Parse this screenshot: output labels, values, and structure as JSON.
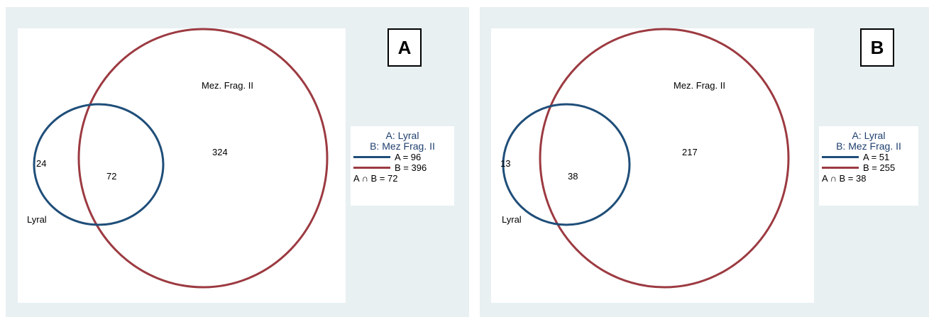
{
  "colors": {
    "set_a": "#1f4e79",
    "set_b": "#9c3a41",
    "panel_bg": "#e8f0f2"
  },
  "panels": [
    {
      "label": "A",
      "set_a_name": "Lyral",
      "set_b_name": "Mez. Frag. II",
      "only_a": "24",
      "intersection": "72",
      "only_b": "324",
      "legend": {
        "title_a": "A:  Lyral",
        "title_b": "B:  Mez Frag. II",
        "a_count": "A = 96",
        "b_count": "B = 396",
        "a_and_b": "A ∩ B = 72"
      }
    },
    {
      "label": "B",
      "set_a_name": "Lyral",
      "set_b_name": "Mez. Frag. II",
      "only_a": "13",
      "intersection": "38",
      "only_b": "217",
      "legend": {
        "title_a": "A:  Lyral",
        "title_b": "B:  Mez Frag. II",
        "a_count": "A = 51",
        "b_count": "B = 255",
        "a_and_b": "A ∩ B = 38"
      }
    }
  ]
}
